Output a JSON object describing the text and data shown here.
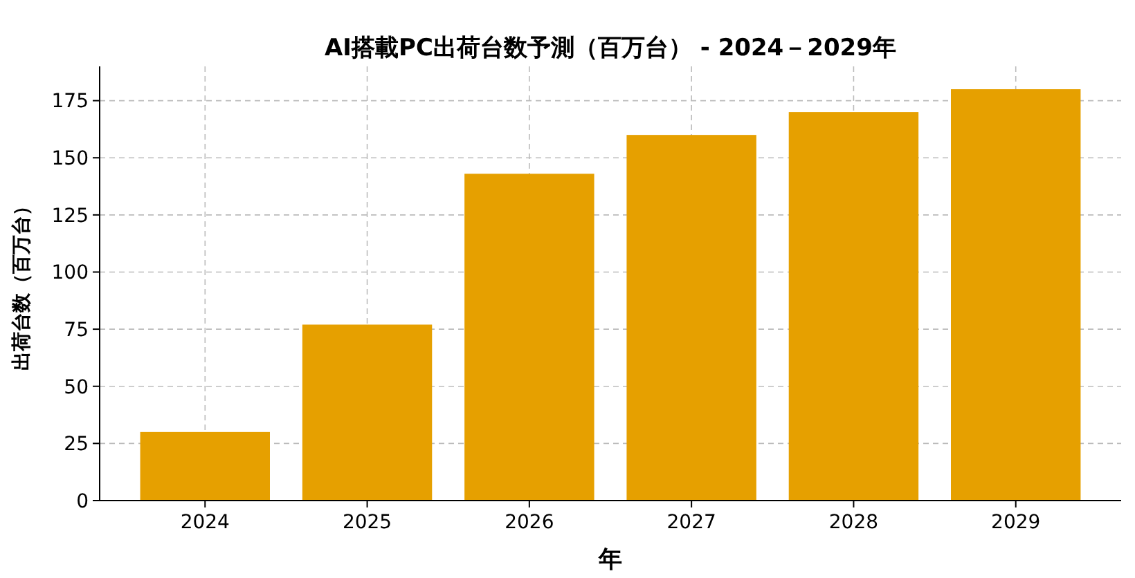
{
  "chart_data": {
    "type": "bar",
    "title": "AI搭載PC出荷台数予測（百万台） - 2024－2029年",
    "xlabel": "年",
    "ylabel": "出荷台数（百万台）",
    "categories": [
      "2024",
      "2025",
      "2026",
      "2027",
      "2028",
      "2029"
    ],
    "values": [
      30,
      77,
      143,
      160,
      170,
      180
    ],
    "color": "#e6a000",
    "ylim": [
      0,
      190
    ],
    "yticks": [
      0,
      25,
      50,
      75,
      100,
      125,
      150,
      175
    ],
    "grid": true
  }
}
